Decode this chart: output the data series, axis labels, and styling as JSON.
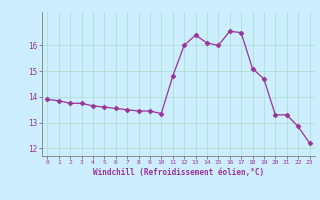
{
  "x": [
    0,
    1,
    2,
    3,
    4,
    5,
    6,
    7,
    8,
    9,
    10,
    11,
    12,
    13,
    14,
    15,
    16,
    17,
    18,
    19,
    20,
    21,
    22,
    23
  ],
  "y": [
    13.9,
    13.85,
    13.75,
    13.75,
    13.65,
    13.6,
    13.55,
    13.5,
    13.45,
    13.45,
    13.35,
    14.8,
    16.0,
    16.4,
    16.1,
    16.0,
    16.55,
    16.5,
    15.1,
    14.7,
    13.3,
    13.3,
    12.85,
    12.2
  ],
  "line_color": "#993399",
  "marker": "D",
  "markersize": 2.5,
  "linewidth": 0.9,
  "bg_color": "#cceeff",
  "grid_color": "#aaddcc",
  "xlabel": "Windchill (Refroidissement éolien,°C)",
  "xlabel_color": "#993399",
  "tick_color": "#993399",
  "spine_color": "#666666",
  "ylim": [
    11.7,
    17.3
  ],
  "xlim": [
    -0.5,
    23.5
  ],
  "yticks": [
    12,
    13,
    14,
    15,
    16
  ],
  "xticks": [
    0,
    1,
    2,
    3,
    4,
    5,
    6,
    7,
    8,
    9,
    10,
    11,
    12,
    13,
    14,
    15,
    16,
    17,
    18,
    19,
    20,
    21,
    22,
    23
  ]
}
